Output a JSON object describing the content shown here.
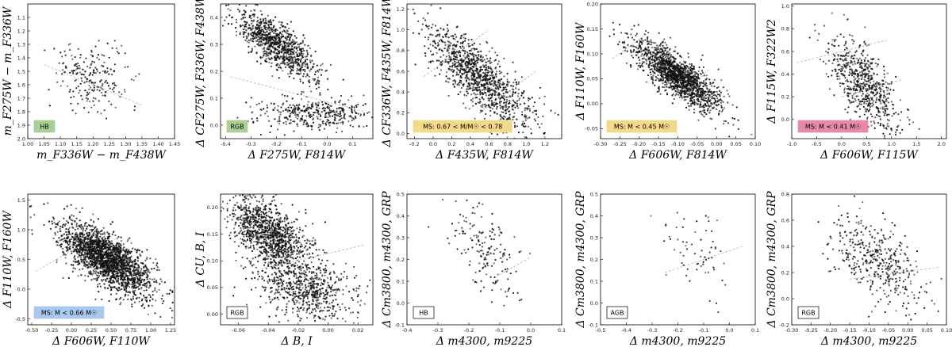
{
  "figure": {
    "colors": {
      "points": "#111111",
      "separator": "#aaaaaa",
      "tag_green": "#a9cf96",
      "tag_yellow": "#f3d98a",
      "tag_pink": "#e88aa6",
      "tag_blue": "#a9c8f0",
      "tag_plain": "#ffffff"
    }
  },
  "chart_data": [
    {
      "id": "p1",
      "type": "scatter",
      "xlabel": "m_F336W − m_F438W",
      "ylabel": "m_F275W − m_F336W",
      "xlim": [
        1.0,
        1.45
      ],
      "ylim": [
        2.0,
        1.0
      ],
      "xticks": [
        "1.00",
        "1.05",
        "1.10",
        "1.15",
        "1.20",
        "1.25",
        "1.30",
        "1.35",
        "1.40",
        "1.45"
      ],
      "yticks": [
        "1.1",
        "1.2",
        "1.3",
        "1.4",
        "1.5",
        "1.6",
        "1.7",
        "1.8",
        "1.9",
        "2.0"
      ],
      "tag": "HB",
      "tag_color": "#a9cf96",
      "cloud": {
        "n": 230,
        "cx": 1.2,
        "cy": 1.55,
        "sx": 0.055,
        "sy": 0.12,
        "rho": 0.0,
        "seed": 11
      },
      "separator": [
        [
          1.05,
          1.45
        ],
        [
          1.35,
          1.75
        ]
      ]
    },
    {
      "id": "p2",
      "type": "scatter",
      "xlabel": "Δ F275W, F814W",
      "ylabel": "Δ CF275W, F336W, F438W",
      "xlim": [
        -0.42,
        0.18
      ],
      "ylim": [
        -0.05,
        0.45
      ],
      "xticks": [
        "-0.4",
        "-0.3",
        "-0.2",
        "-0.1",
        "0.0",
        "0.1"
      ],
      "yticks": [
        "0.0",
        "0.1",
        "0.2",
        "0.3",
        "0.4"
      ],
      "tag": "RGB",
      "tag_color": "#a9cf96",
      "cloud": {
        "n": 950,
        "cx": -0.2,
        "cy": 0.3,
        "sx": 0.075,
        "sy": 0.06,
        "rho": -0.75,
        "seed": 22
      },
      "cloud2": {
        "n": 380,
        "cx": -0.05,
        "cy": 0.04,
        "sx": 0.11,
        "sy": 0.03,
        "rho": 0.0,
        "seed": 23
      },
      "separator": [
        [
          -0.38,
          0.18
        ],
        [
          0.15,
          0.05
        ]
      ]
    },
    {
      "id": "p3",
      "type": "scatter",
      "xlabel": "Δ F435W, F814W",
      "ylabel": "Δ CF336W, F435W, F814W",
      "xlim": [
        -0.28,
        1.38
      ],
      "ylim": [
        -0.05,
        1.25
      ],
      "xticks": [
        "-0.2",
        "0.0",
        "0.2",
        "0.4",
        "0.6",
        "0.8",
        "1.0",
        "1.2"
      ],
      "yticks": [
        "0.0",
        "0.2",
        "0.4",
        "0.6",
        "0.8",
        "1.0",
        "1.2"
      ],
      "tag": "MS: 0.67 < M/M☉ < 0.78",
      "tag_color": "#f3d98a",
      "cloud": {
        "n": 1100,
        "cx": 0.5,
        "cy": 0.55,
        "sx": 0.28,
        "sy": 0.24,
        "rho": -0.78,
        "seed": 33
      },
      "separator": [
        [
          -0.1,
          0.55
        ],
        [
          0.6,
          1.0
        ]
      ],
      "separator2": [
        [
          0.5,
          0.2
        ],
        [
          1.1,
          0.6
        ]
      ]
    },
    {
      "id": "p4",
      "type": "scatter",
      "xlabel": "Δ F606W, F814W",
      "ylabel": "Δ F110W, F160W",
      "xlim": [
        -0.3,
        0.1
      ],
      "ylim": [
        -0.07,
        0.2
      ],
      "xticks": [
        "-0.30",
        "-0.25",
        "-0.20",
        "-0.15",
        "-0.10",
        "-0.05",
        "0.00",
        "0.05",
        "0.10"
      ],
      "yticks": [
        "-0.05",
        "0.00",
        "0.05",
        "0.10",
        "0.15",
        "0.20"
      ],
      "tag": "MS: M < 0.45 M☉",
      "tag_color": "#f3d98a",
      "cloud": {
        "n": 1600,
        "cx": -0.1,
        "cy": 0.055,
        "sx": 0.055,
        "sy": 0.035,
        "rho": -0.8,
        "seed": 44
      },
      "separator": [
        [
          -0.27,
          0.09
        ],
        [
          -0.18,
          0.14
        ]
      ],
      "separator2": [
        [
          -0.1,
          0.0
        ],
        [
          -0.02,
          0.07
        ]
      ]
    },
    {
      "id": "p5",
      "type": "scatter",
      "xlabel": "Δ F606W, F115W",
      "ylabel": "Δ F115W, F322W2",
      "xlim": [
        -1.0,
        2.1
      ],
      "ylim": [
        -0.17,
        1.02
      ],
      "xticks": [
        "-1.0",
        "-0.5",
        "0.0",
        "0.5",
        "1.0",
        "1.5",
        "2.0"
      ],
      "yticks": [
        "0.0",
        "0.2",
        "0.4",
        "0.6",
        "0.8",
        "1.0"
      ],
      "tag": "MS: M < 0.41 M☉",
      "tag_color": "#e88aa6",
      "cloud": {
        "n": 650,
        "cx": 0.45,
        "cy": 0.3,
        "sx": 0.35,
        "sy": 0.22,
        "rho": -0.65,
        "seed": 55
      },
      "separator": [
        [
          -0.9,
          0.5
        ],
        [
          0.9,
          0.7
        ]
      ],
      "separator2": [
        [
          0.0,
          0.2
        ],
        [
          1.2,
          0.35
        ]
      ]
    },
    {
      "id": "p6",
      "type": "scatter",
      "xlabel": "Δ F606W, F110W",
      "ylabel": "Δ F110W, F160W",
      "xlim": [
        -0.55,
        1.3
      ],
      "ylim": [
        -0.6,
        1.6
      ],
      "xticks": [
        "-0.50",
        "-0.25",
        "0.00",
        "0.25",
        "0.50",
        "0.75",
        "1.00",
        "1.25"
      ],
      "yticks": [
        "-0.5",
        "0.0",
        "0.5",
        "1.0",
        "1.5"
      ],
      "tag": "MS: M < 0.66 M☉",
      "tag_color": "#a9c8f0",
      "cloud": {
        "n": 2200,
        "cx": 0.45,
        "cy": 0.5,
        "sx": 0.28,
        "sy": 0.3,
        "rho": -0.7,
        "seed": 66
      },
      "separator": [
        [
          -0.45,
          0.3
        ],
        [
          0.2,
          0.8
        ]
      ]
    },
    {
      "id": "p7",
      "type": "scatter",
      "xlabel": "Δ B, I",
      "ylabel": "Δ CU, B, I",
      "xlim": [
        -0.072,
        0.03
      ],
      "ylim": [
        -0.02,
        0.225
      ],
      "xticks": [
        "-0.06",
        "-0.04",
        "-0.02",
        "0.00",
        "0.02"
      ],
      "yticks": [
        "0.00",
        "0.05",
        "0.10",
        "0.15",
        "0.20"
      ],
      "tag": "RGB",
      "tag_color": "#ffffff",
      "cloud": {
        "n": 1150,
        "cx": -0.04,
        "cy": 0.15,
        "sx": 0.013,
        "sy": 0.035,
        "rho": -0.55,
        "seed": 77
      },
      "cloud2": {
        "n": 650,
        "cx": -0.015,
        "cy": 0.045,
        "sx": 0.016,
        "sy": 0.03,
        "rho": -0.3,
        "seed": 78
      },
      "separator": [
        [
          -0.045,
          0.085
        ],
        [
          0.025,
          0.13
        ]
      ]
    },
    {
      "id": "p8",
      "type": "scatter",
      "xlabel": "Δ m4300, m9225",
      "ylabel": "Δ Cm3800, m4300, GRP",
      "xlim": [
        -0.4,
        0.1
      ],
      "ylim": [
        -0.1,
        0.5
      ],
      "xticks": [
        "-0.4",
        "-0.3",
        "-0.2",
        "-0.1",
        "0.0",
        "0.1"
      ],
      "yticks": [
        "-0.1",
        "0.0",
        "0.1",
        "0.2",
        "0.3",
        "0.4",
        "0.5"
      ],
      "tag": "HB",
      "tag_color": "#ffffff",
      "cloud": {
        "n": 170,
        "cx": -0.15,
        "cy": 0.25,
        "sx": 0.055,
        "sy": 0.12,
        "rho": -0.6,
        "seed": 88
      },
      "separator": [
        [
          -0.1,
          0.13
        ],
        [
          0.0,
          0.21
        ]
      ]
    },
    {
      "id": "p9",
      "type": "scatter",
      "xlabel": "Δ m4300, m9225",
      "ylabel": "Δ Cm3800, m4300, GRP",
      "xlim": [
        -0.5,
        0.1
      ],
      "ylim": [
        -0.1,
        0.5
      ],
      "xticks": [
        "-0.5",
        "-0.4",
        "-0.3",
        "-0.2",
        "-0.1",
        "0.0",
        "0.1"
      ],
      "yticks": [
        "-0.1",
        "0.0",
        "0.1",
        "0.2",
        "0.3",
        "0.4",
        "0.5"
      ],
      "tag": "AGB",
      "tag_color": "#ffffff",
      "cloud": {
        "n": 65,
        "cx": -0.12,
        "cy": 0.22,
        "sx": 0.07,
        "sy": 0.12,
        "rho": -0.6,
        "seed": 99
      },
      "separator": [
        [
          -0.25,
          0.14
        ],
        [
          0.05,
          0.26
        ]
      ]
    },
    {
      "id": "p10",
      "type": "scatter",
      "xlabel": "Δ m4300, m9225",
      "ylabel": "Δ Cm3800, m4300, GRP",
      "xlim": [
        -0.3,
        0.1
      ],
      "ylim": [
        -0.2,
        0.8
      ],
      "xticks": [
        "-0.30",
        "-0.25",
        "-0.20",
        "-0.15",
        "-0.10",
        "-0.05",
        "0.00",
        "0.05",
        "0.10"
      ],
      "yticks": [
        "-0.2",
        "0.0",
        "0.2",
        "0.4",
        "0.6",
        "0.8"
      ],
      "tag": "RGB",
      "tag_color": "#ffffff",
      "cloud": {
        "n": 420,
        "cx": -0.085,
        "cy": 0.3,
        "sx": 0.06,
        "sy": 0.17,
        "rho": -0.5,
        "seed": 111
      },
      "separator": [
        [
          -0.15,
          0.15
        ],
        [
          0.08,
          0.24
        ]
      ]
    }
  ]
}
